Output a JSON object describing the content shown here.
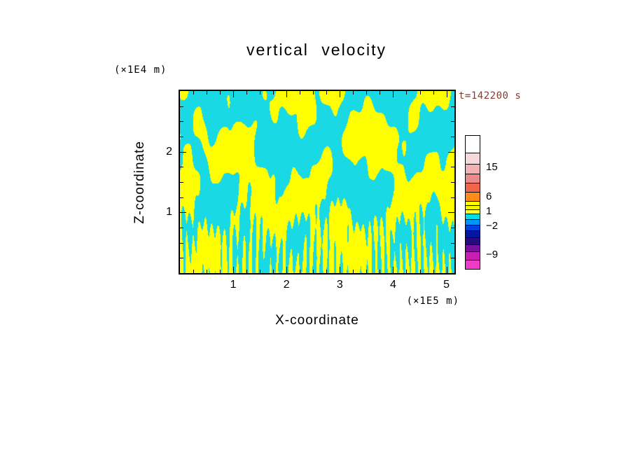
{
  "figure": {
    "title": "vertical velocity",
    "annotation": "t=142200 s",
    "annotation_color": "#8b3a2a",
    "background": "#ffffff"
  },
  "axes": {
    "xlabel": "X-coordinate",
    "x_unit": "(×1E5 m)",
    "ylabel": "Z-coordinate",
    "y_unit": "(×1E4 m)",
    "x_ticks": [
      1,
      2,
      3,
      4,
      5
    ],
    "y_ticks": [
      1,
      2
    ],
    "xlim": [
      0,
      5.15
    ],
    "ylim": [
      0,
      3
    ],
    "x_minor_step": 0.25,
    "y_minor_step": 0.25
  },
  "chart_data": {
    "type": "heatmap",
    "title": "vertical velocity",
    "xlabel": "X-coordinate",
    "ylabel": "Z-coordinate",
    "x_units": "×1E5 m",
    "y_units": "×1E4 m",
    "time_label": "t=142200 s",
    "xlim": [
      0,
      5.15
    ],
    "ylim": [
      0,
      3
    ],
    "x_tick_labels": [
      "1",
      "2",
      "3",
      "4",
      "5"
    ],
    "y_tick_labels": [
      "1",
      "2"
    ],
    "description": "Filled two-color contour field of vertical velocity in an x-z plane at t=142200 s. Nearly the whole domain alternates between yellow (weak positive, ~1 to 6) and cyan (weak negative, ~-2 to 1) bands: broad wavy diagonal patches and chevrons aloft, and dense fine vertical striations below z ~ 1e4 m. Colorbar spans magenta (~ -9) through blues, cyan, yellow, orange, reds and pinks to white (> 15).",
    "field": {
      "positive_color": "#ffff00",
      "negative_color": "#18d9e4",
      "threshold": 0,
      "bias": -0.25,
      "waves": [
        {
          "a": 1.0,
          "kx": 2.0,
          "kz": 3.0,
          "p": 0.3
        },
        {
          "a": 0.85,
          "kx": -2.6,
          "kz": 4.1,
          "p": 1.9
        },
        {
          "a": 0.7,
          "kx": 4.8,
          "kz": 2.2,
          "p": 4.4
        },
        {
          "a": 0.6,
          "kx": -6.3,
          "kz": 5.6,
          "p": 2.6
        },
        {
          "a": 0.55,
          "kx": 9.4,
          "kz": 3.8,
          "p": 0.8
        },
        {
          "a": 0.5,
          "kx": -12.6,
          "kz": 2.9,
          "p": 5.3
        },
        {
          "a": 0.4,
          "kx": 16.8,
          "kz": 7.2,
          "p": 3.7
        },
        {
          "a": 0.35,
          "kx": -21.5,
          "kz": 5.0,
          "p": 1.2
        }
      ],
      "streaks": {
        "a": 2.2,
        "k": 52,
        "decay": 0.85,
        "wobble_a": 2.2,
        "wobble_kx": 1.4,
        "wobble_kz": 0.9
      }
    },
    "colorbar": {
      "tick_values": [
        15,
        6,
        1,
        -2,
        -9
      ],
      "segments": [
        {
          "color": "#ffffff",
          "h": 24
        },
        {
          "color": "#f6d8d8",
          "h": 16
        },
        {
          "color": "#f0b2b2",
          "h": 14
        },
        {
          "color": "#ec8a8a",
          "h": 13
        },
        {
          "color": "#f2654a",
          "h": 13
        },
        {
          "color": "#ff8c1a",
          "h": 13
        },
        {
          "color": "#ffff00",
          "h": 6
        },
        {
          "color": "#f5f500",
          "h": 6
        },
        {
          "color": "#ffff33",
          "h": 6
        },
        {
          "color": "#00dde6",
          "h": 8
        },
        {
          "color": "#0096ff",
          "h": 8
        },
        {
          "color": "#0040e0",
          "h": 8
        },
        {
          "color": "#0018a0",
          "h": 10
        },
        {
          "color": "#2a0a80",
          "h": 10
        },
        {
          "color": "#7a10a0",
          "h": 10
        },
        {
          "color": "#c81eb4",
          "h": 12
        },
        {
          "color": "#ee3cc8",
          "h": 13
        }
      ],
      "labels": [
        {
          "text": "15",
          "y": 46
        },
        {
          "text": "6",
          "y": 88
        },
        {
          "text": "1",
          "y": 109
        },
        {
          "text": "−2",
          "y": 130
        },
        {
          "text": "−9",
          "y": 171
        }
      ]
    }
  }
}
